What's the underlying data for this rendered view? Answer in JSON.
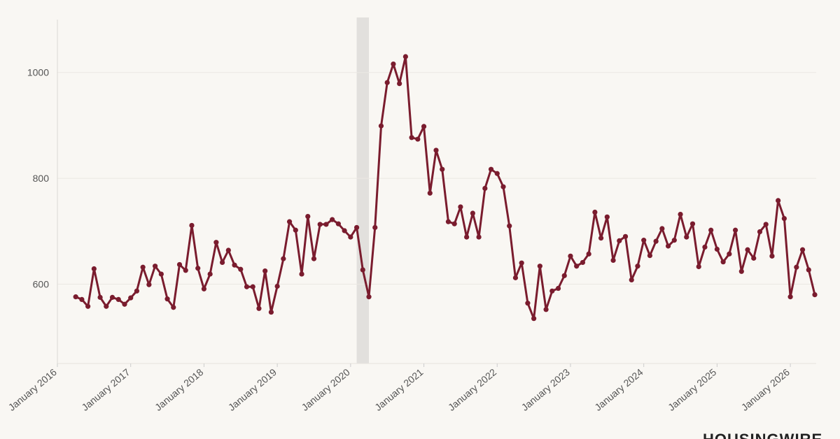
{
  "chart_data": {
    "type": "line",
    "x": [
      "2016-04",
      "2016-05",
      "2016-06",
      "2016-07",
      "2016-08",
      "2016-09",
      "2016-10",
      "2016-11",
      "2016-12",
      "2017-01",
      "2017-02",
      "2017-03",
      "2017-04",
      "2017-05",
      "2017-06",
      "2017-07",
      "2017-08",
      "2017-09",
      "2017-10",
      "2017-11",
      "2017-12",
      "2018-01",
      "2018-02",
      "2018-03",
      "2018-04",
      "2018-05",
      "2018-06",
      "2018-07",
      "2018-08",
      "2018-09",
      "2018-10",
      "2018-11",
      "2018-12",
      "2019-01",
      "2019-02",
      "2019-03",
      "2019-04",
      "2019-05",
      "2019-06",
      "2019-07",
      "2019-08",
      "2019-09",
      "2019-10",
      "2019-11",
      "2019-12",
      "2020-01",
      "2020-02",
      "2020-03",
      "2020-04",
      "2020-05",
      "2020-06",
      "2020-07",
      "2020-08",
      "2020-09",
      "2020-10",
      "2020-11",
      "2020-12",
      "2021-01",
      "2021-02",
      "2021-03",
      "2021-04",
      "2021-05",
      "2021-06",
      "2021-07",
      "2021-08",
      "2021-09",
      "2021-10",
      "2021-11",
      "2021-12",
      "2022-01",
      "2022-02",
      "2022-03",
      "2022-04",
      "2022-05",
      "2022-06",
      "2022-07",
      "2022-08",
      "2022-09",
      "2022-10",
      "2022-11",
      "2022-12",
      "2023-01",
      "2023-02",
      "2023-03",
      "2023-04",
      "2023-05",
      "2023-06",
      "2023-07",
      "2023-08",
      "2023-09",
      "2023-10",
      "2023-11",
      "2023-12",
      "2024-01",
      "2024-02",
      "2024-03",
      "2024-04",
      "2024-05",
      "2024-06",
      "2024-07",
      "2024-08",
      "2024-09",
      "2024-10",
      "2024-11",
      "2024-12",
      "2025-01",
      "2025-02",
      "2025-03",
      "2025-04",
      "2025-05",
      "2025-06",
      "2025-07",
      "2025-08",
      "2025-09",
      "2025-10",
      "2025-11",
      "2025-12",
      "2026-01",
      "2026-02",
      "2026-03",
      "2026-04",
      "2026-05"
    ],
    "series": [
      {
        "color": "#7a1c2e",
        "values": [
          576,
          571,
          558,
          629,
          575,
          558,
          575,
          571,
          562,
          574,
          587,
          632,
          599,
          634,
          619,
          572,
          556,
          637,
          626,
          711,
          630,
          591,
          619,
          679,
          641,
          664,
          636,
          628,
          595,
          595,
          554,
          625,
          547,
          596,
          648,
          718,
          702,
          619,
          728,
          648,
          713,
          713,
          722,
          714,
          701,
          689,
          707,
          627,
          576,
          707,
          899,
          981,
          1016,
          979,
          1030,
          877,
          874,
          898,
          772,
          853,
          817,
          718,
          714,
          746,
          689,
          734,
          689,
          781,
          817,
          809,
          784,
          710,
          612,
          640,
          564,
          535,
          634,
          552,
          587,
          592,
          616,
          653,
          634,
          641,
          657,
          736,
          687,
          727,
          645,
          682,
          690,
          608,
          634,
          683,
          654,
          681,
          705,
          672,
          683,
          732,
          689,
          714,
          633,
          670,
          702,
          666,
          642,
          657,
          702,
          624,
          665,
          649,
          699,
          713,
          653,
          758,
          724,
          576,
          632,
          665,
          627,
          580
        ]
      }
    ],
    "shaded": [
      "2020-02",
      "2020-04"
    ],
    "xlim": [
      "2016-01",
      "2026-05"
    ],
    "xticks": [
      {
        "value": "2016-01",
        "label": "January 2016"
      },
      {
        "value": "2017-01",
        "label": "January 2017"
      },
      {
        "value": "2018-01",
        "label": "January 2018"
      },
      {
        "value": "2019-01",
        "label": "January 2019"
      },
      {
        "value": "2020-01",
        "label": "January 2020"
      },
      {
        "value": "2021-01",
        "label": "January 2021"
      },
      {
        "value": "2022-01",
        "label": "January 2022"
      },
      {
        "value": "2023-01",
        "label": "January 2023"
      },
      {
        "value": "2024-01",
        "label": "January 2024"
      },
      {
        "value": "2025-01",
        "label": "January 2025"
      },
      {
        "value": "2026-01",
        "label": "January 2026"
      }
    ],
    "ylim": [
      450,
      1100
    ],
    "yticks": [
      600,
      800,
      1000
    ],
    "grid": true
  },
  "brand": "HOUSINGWIRE"
}
